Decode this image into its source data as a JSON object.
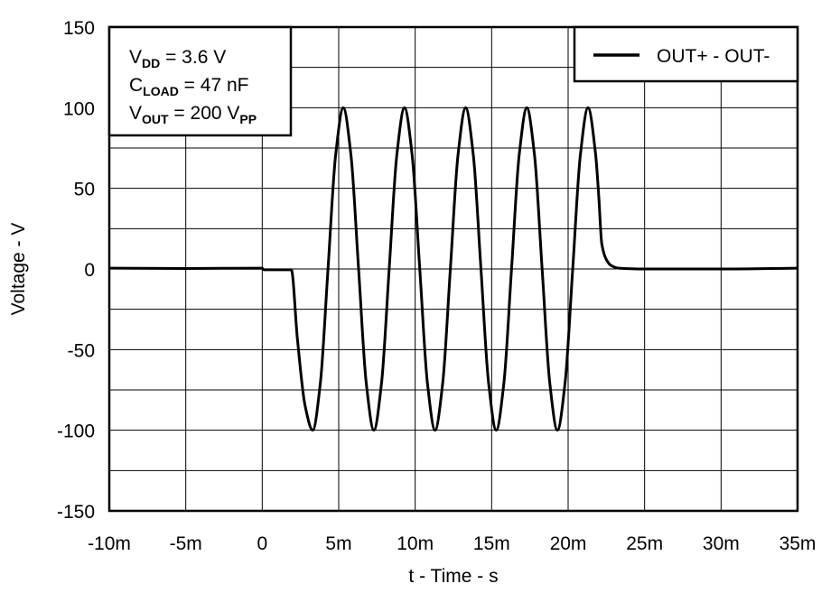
{
  "chart_data": {
    "type": "line",
    "title": "",
    "xlabel": "t - Time - s",
    "ylabel": "Voltage - V",
    "xlim": [
      -0.01,
      0.035
    ],
    "ylim": [
      -150,
      150
    ],
    "grid": true,
    "x_grid_step": 0.005,
    "y_grid_step": 25,
    "xticks": [
      -0.01,
      -0.005,
      0,
      0.005,
      0.01,
      0.015,
      0.02,
      0.025,
      0.03,
      0.035
    ],
    "xtick_labels": [
      "-10m",
      "-5m",
      "0",
      "5m",
      "10m",
      "15m",
      "20m",
      "25m",
      "30m",
      "35m"
    ],
    "yticks": [
      150,
      100,
      50,
      0,
      -50,
      -100,
      -150
    ],
    "ytick_labels": [
      "150",
      "100",
      "50",
      "0",
      "-50",
      "-100",
      "-150"
    ],
    "legend_placement": "top-right",
    "annotation": [
      {
        "main": "V",
        "sub": "DD",
        "rest": " = 3.6 V",
        "sub2": ""
      },
      {
        "main": "C",
        "sub": "LOAD",
        "rest": " = 47 nF",
        "sub2": ""
      },
      {
        "main": "V",
        "sub": "OUT",
        "rest": " = 200 V",
        "sub2": "PP"
      }
    ],
    "series": [
      {
        "name": "OUT+ - OUT-",
        "color": "#000000",
        "x_ms": [
          -10,
          -5,
          0,
          0.1,
          1.9,
          2.3,
          2.8,
          3.3,
          3.8,
          4.3,
          4.8,
          5.3,
          5.8,
          6.3,
          6.8,
          7.3,
          7.8,
          8.3,
          8.8,
          9.3,
          9.8,
          10.3,
          10.8,
          11.3,
          11.8,
          12.3,
          12.8,
          13.3,
          13.8,
          14.3,
          14.8,
          15.3,
          15.8,
          16.3,
          16.8,
          17.3,
          17.8,
          18.3,
          18.8,
          19.3,
          19.8,
          20.3,
          20.8,
          21.3,
          21.8,
          22.0,
          22.2,
          22.5,
          22.8,
          23.3,
          25,
          30,
          35
        ],
        "y": [
          0.5,
          0.3,
          0.5,
          -0.5,
          -0.5,
          -43.4,
          -84.7,
          -100,
          -70.7,
          0,
          70.7,
          100,
          70.7,
          0,
          -70.7,
          -100,
          -70.7,
          0,
          70.7,
          100,
          70.7,
          0,
          -70.7,
          -100,
          -70.7,
          0,
          70.7,
          100,
          70.7,
          0,
          -70.7,
          -100,
          -70.7,
          0,
          70.7,
          100,
          70.7,
          0,
          -70.7,
          -100,
          -70.7,
          0,
          70.7,
          100,
          70.7,
          45.4,
          15.6,
          5.8,
          2.2,
          0.5,
          0,
          0,
          0.5
        ]
      }
    ]
  }
}
